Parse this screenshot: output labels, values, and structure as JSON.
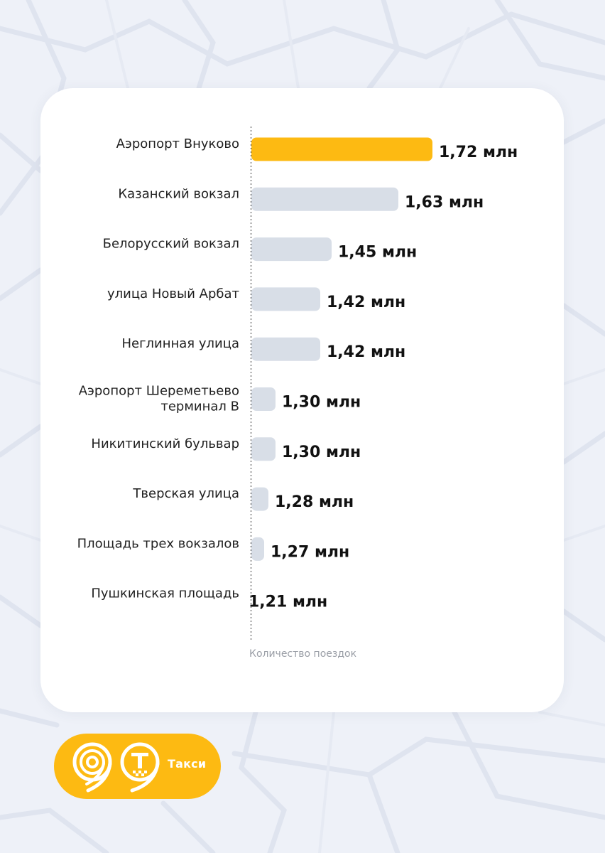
{
  "chart_data": {
    "type": "bar",
    "orientation": "horizontal",
    "categories": [
      "Аэропорт Внуково",
      "Казанский вокзал",
      "Белорусский вокзал",
      "улица Новый Арбат",
      "Неглинная улица",
      "Аэропорт Шереметьево терминал В",
      "Никитинский бульвар",
      "Тверская улица",
      "Площадь трех вокзалов",
      "Пушкинская площадь"
    ],
    "values": [
      1.72,
      1.63,
      1.45,
      1.42,
      1.42,
      1.3,
      1.3,
      1.28,
      1.27,
      1.21
    ],
    "value_labels": [
      "1,72 млн",
      "1,63 млн",
      "1,45 млн",
      "1,42 млн",
      "1,42 млн",
      "1,30 млн",
      "1,30 млн",
      "1,28 млн",
      "1,27 млн",
      "1,21 млн"
    ],
    "unit": "млн",
    "title": "",
    "xlabel": "Количество поездок",
    "ylabel": "",
    "highlight_index": 0,
    "colors": {
      "highlight": "#fdba12",
      "bar": "#d8dee7",
      "axis": "#555555"
    },
    "grid": false,
    "legend": false
  },
  "brand": {
    "name": "Такси",
    "colors": {
      "pill": "#fdba12",
      "icon": "#ffffff"
    },
    "icons": [
      "moscow-nine-logo-icon",
      "taxi-pin-logo-icon"
    ]
  }
}
